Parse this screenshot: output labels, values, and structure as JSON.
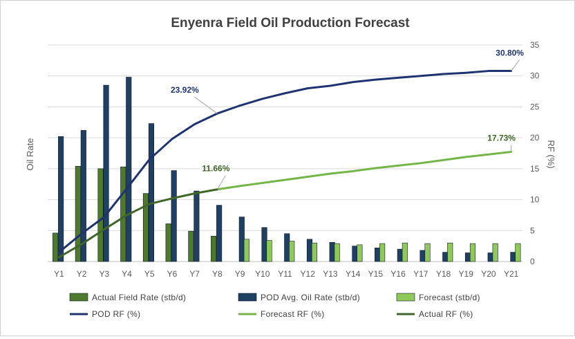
{
  "chart_data": {
    "type": "bar",
    "title": "Enyenra Field Oil Production Forecast",
    "ylabel": "Oil Rate",
    "y2label": "RF (%)",
    "ylim": [
      0,
      35
    ],
    "yticks": [
      0,
      5,
      10,
      15,
      20,
      25,
      30,
      35
    ],
    "categories": [
      "Y1",
      "Y2",
      "Y3",
      "Y4",
      "Y5",
      "Y6",
      "Y7",
      "Y8",
      "Y9",
      "Y10",
      "Y11",
      "Y12",
      "Y13",
      "Y14",
      "Y15",
      "Y16",
      "Y17",
      "Y18",
      "Y19",
      "Y20",
      "Y21"
    ],
    "grid": true,
    "legend_position": "bottom",
    "bar_series": [
      {
        "name": "Actual Field Rate (stb/d)",
        "color": "#4f7a2e",
        "values": [
          4.6,
          15.4,
          15.0,
          15.3,
          11.0,
          6.1,
          4.9,
          4.1,
          null,
          null,
          null,
          null,
          null,
          null,
          null,
          null,
          null,
          null,
          null,
          null,
          null
        ]
      },
      {
        "name": "POD Avg. Oil Rate (stb/d)",
        "color": "#1f3f63",
        "values": [
          20.2,
          21.2,
          28.5,
          29.8,
          22.3,
          14.7,
          11.4,
          9.1,
          7.2,
          5.5,
          4.5,
          3.6,
          3.1,
          2.5,
          2.2,
          2.0,
          1.8,
          1.5,
          1.4,
          1.4,
          1.5
        ]
      },
      {
        "name": "Forecast (stb/d)",
        "color": "#8fc95a",
        "values": [
          null,
          null,
          null,
          null,
          null,
          null,
          null,
          null,
          3.6,
          3.4,
          3.3,
          3.0,
          2.9,
          2.7,
          2.9,
          3.0,
          2.9,
          3.0,
          2.9,
          2.9,
          2.9
        ]
      }
    ],
    "line_series": [
      {
        "name": "POD RF (%)",
        "color": "#1e3370",
        "width": 3,
        "values": [
          1.5,
          4.5,
          7.2,
          11.8,
          16.5,
          19.8,
          22.2,
          23.92,
          25.2,
          26.3,
          27.2,
          28.0,
          28.4,
          29.0,
          29.4,
          29.7,
          30.0,
          30.3,
          30.5,
          30.8,
          30.8
        ]
      },
      {
        "name": "Forecast RF (%)",
        "color": "#74b548",
        "width": 3,
        "values": [
          null,
          null,
          null,
          null,
          null,
          null,
          null,
          11.66,
          12.2,
          12.7,
          13.2,
          13.7,
          14.2,
          14.6,
          15.1,
          15.5,
          15.9,
          16.4,
          16.9,
          17.3,
          17.73
        ]
      },
      {
        "name": "Actual RF (%)",
        "color": "#41662a",
        "width": 3,
        "values": [
          0.7,
          2.8,
          5.2,
          7.5,
          9.3,
          10.2,
          11.0,
          11.66,
          null,
          null,
          null,
          null,
          null,
          null,
          null,
          null,
          null,
          null,
          null,
          null,
          null
        ]
      }
    ],
    "annotations": [
      {
        "text": "23.92%",
        "series": "POD RF (%)",
        "index": 7,
        "color": "#1e3370"
      },
      {
        "text": "30.80%",
        "series": "POD RF (%)",
        "index": 20,
        "color": "#1e3370"
      },
      {
        "text": "11.66%",
        "series": "Actual RF (%)",
        "index": 7,
        "color": "#41662a"
      },
      {
        "text": "17.73%",
        "series": "Forecast RF (%)",
        "index": 20,
        "color": "#41662a"
      }
    ]
  }
}
